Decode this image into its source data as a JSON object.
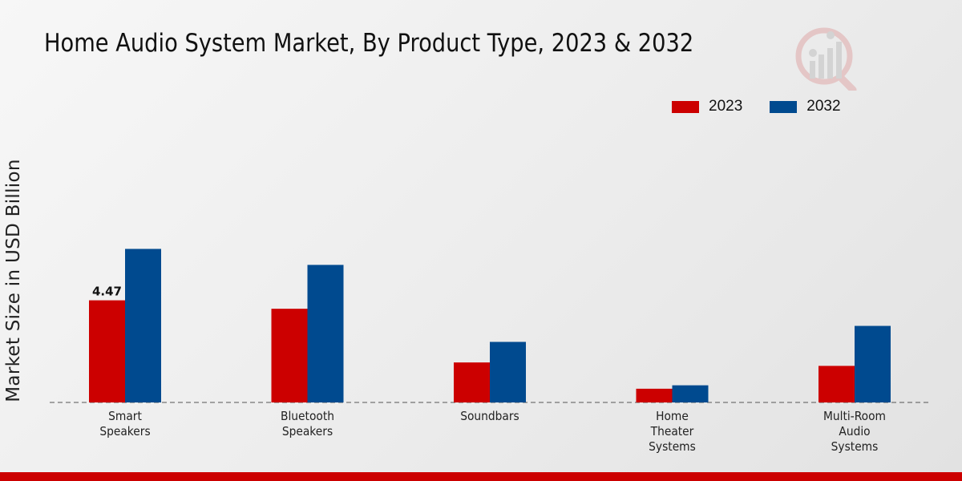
{
  "chart_data": {
    "type": "bar",
    "title": "Home Audio System Market, By Product Type, 2023 & 2032",
    "xlabel": "",
    "ylabel": "Market Size in USD Billion",
    "categories": [
      [
        "Smart",
        "Speakers"
      ],
      [
        "Bluetooth",
        "Speakers"
      ],
      [
        "Soundbars"
      ],
      [
        "Home",
        "Theater",
        "Systems"
      ],
      [
        "Multi-Room",
        "Audio",
        "Systems"
      ]
    ],
    "series": [
      {
        "name": "2023",
        "color": "#cc0000",
        "values": [
          4.47,
          4.1,
          1.75,
          0.6,
          1.6
        ]
      },
      {
        "name": "2032",
        "color": "#004a8f",
        "values": [
          6.72,
          6.02,
          2.65,
          0.75,
          3.35
        ]
      }
    ],
    "data_labels": [
      {
        "series": 0,
        "index": 0,
        "text": "4.47"
      }
    ],
    "ylim": [
      0,
      10
    ],
    "grid": false,
    "legend_position": "top-right"
  }
}
